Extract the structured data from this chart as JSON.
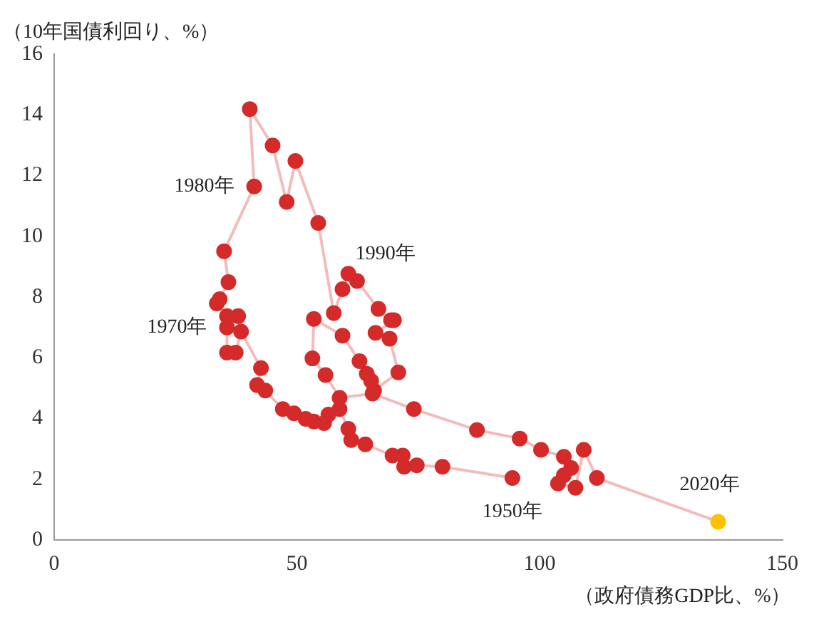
{
  "chart_data": {
    "type": "line",
    "xlabel": "（政府債務GDP比、%）",
    "ylabel": "（10年国債利回り、%）",
    "x": [
      94.4,
      80.0,
      74.7,
      72.1,
      71.8,
      69.7,
      64.1,
      61.2,
      60.6,
      58.8,
      56.5,
      55.6,
      53.5,
      51.8,
      49.4,
      47.1,
      43.5,
      41.8,
      42.6,
      38.5,
      37.4,
      35.6,
      35.6,
      37.9,
      35.6,
      33.5,
      34.1,
      35.9,
      35.0,
      41.2,
      40.3,
      45.0,
      47.9,
      49.7,
      54.4,
      57.6,
      59.4,
      60.6,
      62.4,
      66.8,
      69.4,
      70.0,
      66.2,
      69.1,
      70.9,
      65.9,
      65.3,
      64.4,
      62.9,
      59.4,
      53.5,
      53.2,
      55.9,
      58.8,
      65.6,
      74.1,
      87.1,
      95.9,
      100.3,
      105.0,
      106.5,
      105.0,
      103.8,
      107.4,
      109.1,
      111.8,
      136.8
    ],
    "series": [
      {
        "color": "#f2bcbc",
        "colors": [
          "#d42a2a",
          "#d42a2a",
          "#d42a2a",
          "#d42a2a",
          "#d42a2a",
          "#d42a2a",
          "#d42a2a",
          "#d42a2a",
          "#d42a2a",
          "#d42a2a",
          "#d42a2a",
          "#d42a2a",
          "#d42a2a",
          "#d42a2a",
          "#d42a2a",
          "#d42a2a",
          "#d42a2a",
          "#d42a2a",
          "#d42a2a",
          "#d42a2a",
          "#d42a2a",
          "#d42a2a",
          "#d42a2a",
          "#d42a2a",
          "#d42a2a",
          "#d42a2a",
          "#d42a2a",
          "#d42a2a",
          "#d42a2a",
          "#d42a2a",
          "#d42a2a",
          "#d42a2a",
          "#d42a2a",
          "#d42a2a",
          "#d42a2a",
          "#d42a2a",
          "#d42a2a",
          "#d42a2a",
          "#d42a2a",
          "#d42a2a",
          "#d42a2a",
          "#d42a2a",
          "#d42a2a",
          "#d42a2a",
          "#d42a2a",
          "#d42a2a",
          "#d42a2a",
          "#d42a2a",
          "#d42a2a",
          "#d42a2a",
          "#d42a2a",
          "#d42a2a",
          "#d42a2a",
          "#d42a2a",
          "#d42a2a",
          "#d42a2a",
          "#d42a2a",
          "#d42a2a",
          "#d42a2a",
          "#d42a2a",
          "#d42a2a",
          "#d42a2a",
          "#d42a2a",
          "#d42a2a",
          "#d42a2a",
          "#d42a2a",
          "#ffc000"
        ],
        "values": [
          2.04,
          2.41,
          2.46,
          2.41,
          2.78,
          2.78,
          3.15,
          3.29,
          3.66,
          4.31,
          4.13,
          3.85,
          3.9,
          3.99,
          4.17,
          4.31,
          4.92,
          5.1,
          5.66,
          6.86,
          6.17,
          6.17,
          7.0,
          7.37,
          7.37,
          7.79,
          7.93,
          8.49,
          9.51,
          11.64,
          14.19,
          12.99,
          11.13,
          12.48,
          10.44,
          7.47,
          8.26,
          8.77,
          8.53,
          7.61,
          7.24,
          7.24,
          6.82,
          6.63,
          5.52,
          4.92,
          5.24,
          5.47,
          5.89,
          6.73,
          7.28,
          5.98,
          5.43,
          4.68,
          4.82,
          4.31,
          3.62,
          3.34,
          2.97,
          2.74,
          2.37,
          2.13,
          1.86,
          1.72,
          2.97,
          2.04,
          0.6
        ]
      }
    ],
    "annotations": [
      {
        "text": "1950年",
        "x": 94.4,
        "y": 2.04
      },
      {
        "text": "1970年",
        "x": 35.6,
        "y": 7.0
      },
      {
        "text": "1980年",
        "x": 41.2,
        "y": 11.64
      },
      {
        "text": "1990年",
        "x": 60.6,
        "y": 8.77
      },
      {
        "text": "2020年",
        "x": 136.8,
        "y": 0.6
      }
    ],
    "xlim": [
      0,
      150
    ],
    "xticks": [
      0,
      50,
      100,
      150
    ],
    "ylim": [
      0,
      16
    ],
    "yticks": [
      0,
      2,
      4,
      6,
      8,
      10,
      12,
      14,
      16
    ],
    "grid": false,
    "legend": false,
    "marker": "circle",
    "line_style": "solid"
  }
}
